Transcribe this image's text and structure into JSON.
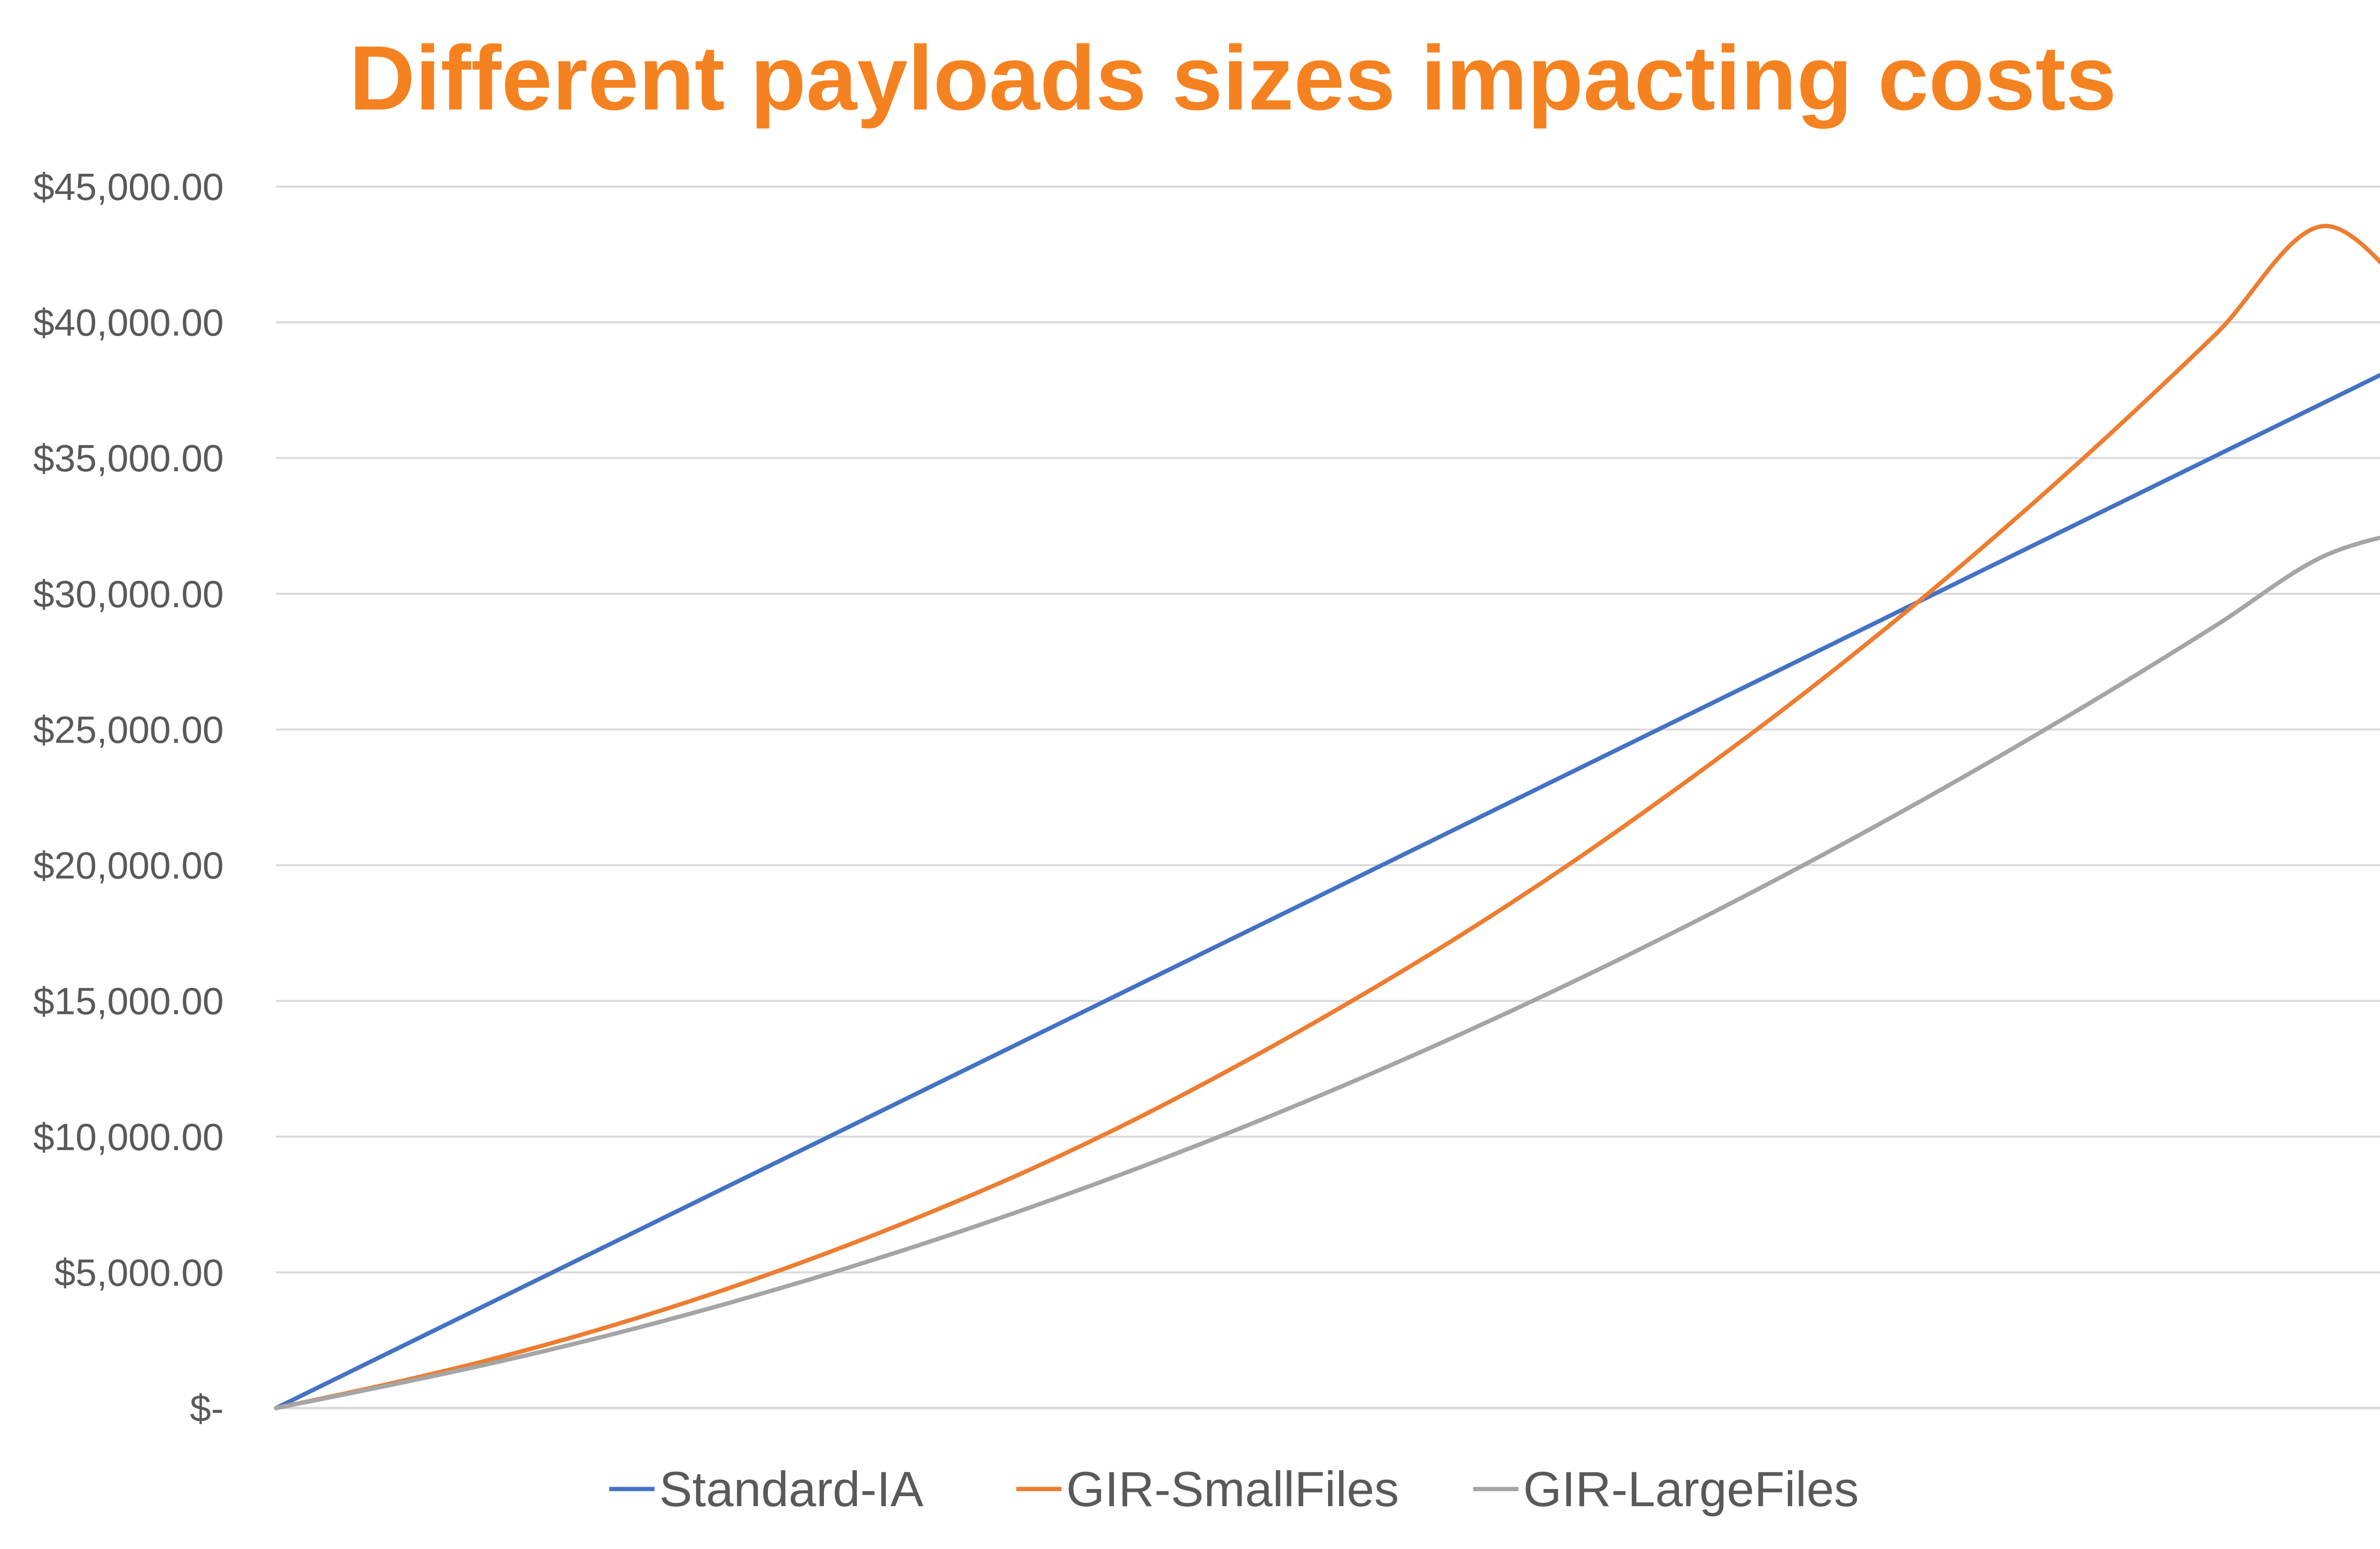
{
  "chart_data": {
    "type": "line",
    "title": "Different payloads sizes impacting costs",
    "xlabel": "",
    "ylabel": "",
    "ylim": [
      0,
      45000
    ],
    "yticks": [
      {
        "value": 0,
        "label": "$-"
      },
      {
        "value": 5000,
        "label": "$5,000.00"
      },
      {
        "value": 10000,
        "label": "$10,000.00"
      },
      {
        "value": 15000,
        "label": "$15,000.00"
      },
      {
        "value": 20000,
        "label": "$20,000.00"
      },
      {
        "value": 25000,
        "label": "$25,000.00"
      },
      {
        "value": 30000,
        "label": "$30,000.00"
      },
      {
        "value": 35000,
        "label": "$35,000.00"
      },
      {
        "value": 40000,
        "label": "$40,000.00"
      },
      {
        "value": 45000,
        "label": "$45,000.00"
      }
    ],
    "x": [
      0,
      1,
      2,
      3,
      4,
      5,
      6,
      7,
      8,
      9,
      10,
      11,
      12,
      13,
      14,
      15,
      16,
      17,
      18,
      19,
      20
    ],
    "xlim": [
      0,
      20
    ],
    "grid": true,
    "legend_position": "bottom",
    "series": [
      {
        "name": "Standard-IA",
        "color": "#4472C4",
        "values": [
          0,
          1950,
          3900,
          5850,
          7800,
          9750,
          11700,
          13650,
          15600,
          17550,
          19500,
          21450,
          23400,
          25350,
          27300,
          29250,
          31200,
          33150,
          35100,
          37050,
          39000
        ]
      },
      {
        "name": "GIR-SmallFiles",
        "color": "#ED7D31",
        "values": [
          0,
          850,
          1800,
          2900,
          4150,
          5550,
          7100,
          8800,
          10700,
          12800,
          15050,
          17450,
          20050,
          22850,
          25800,
          28950,
          32300,
          35850,
          39600,
          43550,
          40000
        ]
      },
      {
        "name": "GIR-LargeFiles",
        "color": "#A5A5A5",
        "values": [
          0,
          800,
          1650,
          2600,
          3650,
          4800,
          6050,
          7400,
          8850,
          10400,
          12050,
          13800,
          15650,
          17600,
          19650,
          21800,
          24050,
          26400,
          28850,
          31400,
          32500
        ]
      }
    ]
  },
  "colors": {
    "title": "#F58220",
    "gridline": "#D9D9D9",
    "axis": "#D9D9D9",
    "tick_text": "#595959",
    "legend_text": "#595959"
  }
}
